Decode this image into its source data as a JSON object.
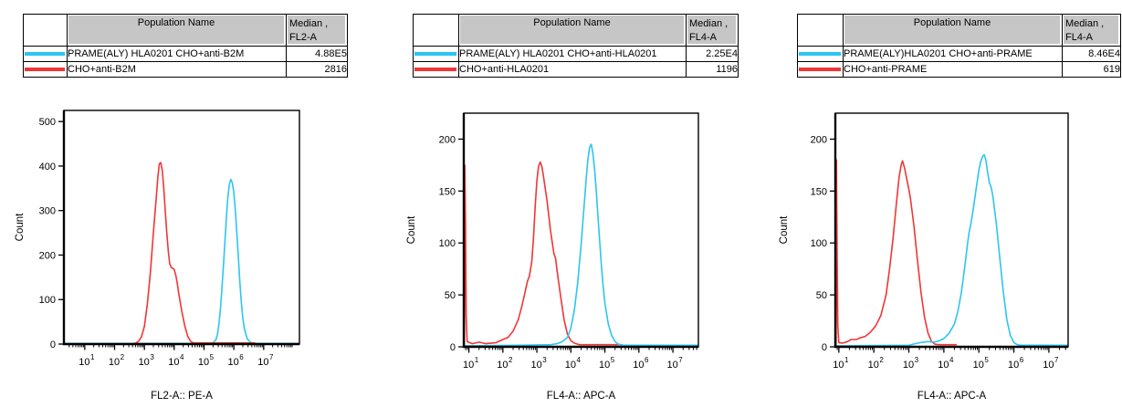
{
  "colors": {
    "cyan": "#2bc5f3",
    "red": "#f13535",
    "table_header_bg": "#c6c6c6",
    "axis": "#000000",
    "background": "#ffffff"
  },
  "panels": [
    {
      "table": {
        "header": {
          "population": "Population Name",
          "median_line1": "Median ,",
          "median_line2": "FL2-A"
        },
        "rows": [
          {
            "swatch_color": "#2bc5f3",
            "name": "PRAME(ALY) HLA0201 CHO+anti-B2M",
            "median": "4.88E5"
          },
          {
            "swatch_color": "#f13535",
            "name": "CHO+anti-B2M",
            "median": "2816"
          }
        ]
      }
    },
    {
      "table": {
        "header": {
          "population": "Population Name",
          "median_line1": "Median ,",
          "median_line2": "FL4-A"
        },
        "rows": [
          {
            "swatch_color": "#2bc5f3",
            "name": "PRAME(ALY) HLA0201 CHO+anti-HLA0201",
            "median": "2.25E4"
          },
          {
            "swatch_color": "#f13535",
            "name": "CHO+anti-HLA0201",
            "median": "1196"
          }
        ]
      }
    },
    {
      "table": {
        "header": {
          "population": "Population Name",
          "median_line1": "Median ,",
          "median_line2": "FL4-A"
        },
        "rows": [
          {
            "swatch_color": "#2bc5f3",
            "name": "PRAME(ALY)HLA0201 CHO+anti-PRAME",
            "median": "8.46E4"
          },
          {
            "swatch_color": "#f13535",
            "name": "CHO+anti-PRAME",
            "median": "619"
          }
        ]
      }
    }
  ],
  "chart_data": [
    {
      "type": "line",
      "title": "",
      "xlabel": "FL2-A:: PE-A",
      "ylabel": "Count",
      "x_scale": "log10",
      "x_range_log": [
        0.3,
        8.2
      ],
      "ylim": [
        0,
        525
      ],
      "yticks": [
        0,
        100,
        200,
        300,
        400,
        500
      ],
      "xticks_exponents": [
        1,
        2,
        3,
        4,
        5,
        6,
        7
      ],
      "grid": false,
      "legend_position": "table-above",
      "series": [
        {
          "name": "PRAME(ALY) HLA0201 CHO+anti-B2M",
          "color": "#2bc5f3",
          "median": "4.88E5",
          "points_logx_count": [
            [
              0.3,
              1.5
            ],
            [
              5.2,
              1.5
            ],
            [
              5.3,
              3
            ],
            [
              5.4,
              10
            ],
            [
              5.45,
              22
            ],
            [
              5.5,
              45
            ],
            [
              5.55,
              80
            ],
            [
              5.6,
              125
            ],
            [
              5.65,
              175
            ],
            [
              5.7,
              230
            ],
            [
              5.75,
              285
            ],
            [
              5.8,
              330
            ],
            [
              5.85,
              360
            ],
            [
              5.9,
              370
            ],
            [
              5.95,
              362
            ],
            [
              6.0,
              340
            ],
            [
              6.05,
              300
            ],
            [
              6.1,
              250
            ],
            [
              6.15,
              195
            ],
            [
              6.2,
              140
            ],
            [
              6.25,
              95
            ],
            [
              6.3,
              60
            ],
            [
              6.35,
              35
            ],
            [
              6.45,
              12
            ],
            [
              6.55,
              4
            ],
            [
              6.65,
              1.5
            ],
            [
              8.2,
              1.5
            ]
          ]
        },
        {
          "name": "CHO+anti-B2M",
          "color": "#f13535",
          "median": "2816",
          "points_logx_count": [
            [
              2.55,
              0
            ],
            [
              2.7,
              2
            ],
            [
              2.8,
              6
            ],
            [
              2.9,
              16
            ],
            [
              3.0,
              40
            ],
            [
              3.1,
              90
            ],
            [
              3.2,
              160
            ],
            [
              3.3,
              250
            ],
            [
              3.4,
              330
            ],
            [
              3.45,
              375
            ],
            [
              3.5,
              405
            ],
            [
              3.55,
              408
            ],
            [
              3.6,
              390
            ],
            [
              3.65,
              350
            ],
            [
              3.7,
              300
            ],
            [
              3.75,
              250
            ],
            [
              3.8,
              210
            ],
            [
              3.85,
              180
            ],
            [
              3.9,
              172
            ],
            [
              4.0,
              168
            ],
            [
              4.05,
              155
            ],
            [
              4.1,
              138
            ],
            [
              4.15,
              115
            ],
            [
              4.25,
              75
            ],
            [
              4.35,
              42
            ],
            [
              4.45,
              18
            ],
            [
              4.55,
              6
            ],
            [
              4.65,
              2.5
            ],
            [
              6.7,
              2.5
            ]
          ]
        }
      ]
    },
    {
      "type": "line",
      "title": "",
      "xlabel": "FL4-A:: APC-A",
      "ylabel": "Count",
      "x_scale": "log10",
      "x_range_log": [
        0.85,
        7.75
      ],
      "ylim": [
        0,
        225
      ],
      "yticks": [
        0,
        50,
        100,
        150,
        200
      ],
      "xticks_exponents": [
        1,
        2,
        3,
        4,
        5,
        6,
        7
      ],
      "grid": false,
      "legend_position": "table-above",
      "series": [
        {
          "name": "CHO+anti-HLA0201",
          "color": "#f13535",
          "median": "1196",
          "points_logx_count": [
            [
              0.87,
              0
            ],
            [
              0.88,
              175
            ],
            [
              0.9,
              120
            ],
            [
              0.92,
              30
            ],
            [
              0.95,
              5
            ],
            [
              1.1,
              3
            ],
            [
              1.3,
              4.5
            ],
            [
              1.5,
              3
            ],
            [
              1.8,
              4
            ],
            [
              2.0,
              7
            ],
            [
              2.15,
              9
            ],
            [
              2.3,
              15
            ],
            [
              2.45,
              26
            ],
            [
              2.55,
              38
            ],
            [
              2.65,
              52
            ],
            [
              2.72,
              63
            ],
            [
              2.78,
              68
            ],
            [
              2.85,
              82
            ],
            [
              2.9,
              105
            ],
            [
              2.95,
              135
            ],
            [
              3.0,
              160
            ],
            [
              3.05,
              174
            ],
            [
              3.1,
              178
            ],
            [
              3.15,
              173
            ],
            [
              3.2,
              163
            ],
            [
              3.3,
              140
            ],
            [
              3.4,
              112
            ],
            [
              3.5,
              90
            ],
            [
              3.55,
              85
            ],
            [
              3.6,
              72
            ],
            [
              3.7,
              48
            ],
            [
              3.8,
              26
            ],
            [
              3.9,
              12
            ],
            [
              4.0,
              6
            ],
            [
              4.1,
              3.5
            ],
            [
              4.25,
              2
            ],
            [
              5.5,
              2
            ]
          ]
        },
        {
          "name": "PRAME(ALY) HLA0201 CHO+anti-HLA0201",
          "color": "#2bc5f3",
          "median": "2.25E4",
          "points_logx_count": [
            [
              0.87,
              1
            ],
            [
              2.5,
              1.5
            ],
            [
              3.4,
              2
            ],
            [
              3.6,
              3
            ],
            [
              3.75,
              5
            ],
            [
              3.9,
              9
            ],
            [
              4.0,
              18
            ],
            [
              4.1,
              35
            ],
            [
              4.2,
              62
            ],
            [
              4.3,
              98
            ],
            [
              4.4,
              140
            ],
            [
              4.45,
              162
            ],
            [
              4.5,
              180
            ],
            [
              4.55,
              192
            ],
            [
              4.6,
              195
            ],
            [
              4.65,
              186
            ],
            [
              4.7,
              170
            ],
            [
              4.75,
              148
            ],
            [
              4.8,
              124
            ],
            [
              4.85,
              100
            ],
            [
              4.9,
              78
            ],
            [
              4.95,
              58
            ],
            [
              5.0,
              42
            ],
            [
              5.1,
              22
            ],
            [
              5.2,
              11
            ],
            [
              5.3,
              5
            ],
            [
              5.4,
              2.5
            ],
            [
              5.5,
              1.5
            ],
            [
              7.75,
              1.5
            ]
          ]
        }
      ]
    },
    {
      "type": "line",
      "title": "",
      "xlabel": "FL4-A:: APC-A",
      "ylabel": "Count",
      "x_scale": "log10",
      "x_range_log": [
        0.9,
        7.55
      ],
      "ylim": [
        0,
        225
      ],
      "yticks": [
        0,
        50,
        100,
        150,
        200
      ],
      "xticks_exponents": [
        1,
        2,
        3,
        4,
        5,
        6,
        7
      ],
      "grid": false,
      "legend_position": "table-above",
      "series": [
        {
          "name": "CHO+anti-PRAME",
          "color": "#f13535",
          "median": "619",
          "points_logx_count": [
            [
              0.92,
              0
            ],
            [
              0.93,
              180
            ],
            [
              0.95,
              95
            ],
            [
              0.97,
              20
            ],
            [
              1.0,
              4
            ],
            [
              1.1,
              3.5
            ],
            [
              1.25,
              5
            ],
            [
              1.35,
              7
            ],
            [
              1.5,
              7
            ],
            [
              1.6,
              8.5
            ],
            [
              1.75,
              10
            ],
            [
              1.9,
              14
            ],
            [
              2.05,
              20
            ],
            [
              2.2,
              30
            ],
            [
              2.35,
              50
            ],
            [
              2.45,
              75
            ],
            [
              2.55,
              105
            ],
            [
              2.65,
              140
            ],
            [
              2.72,
              163
            ],
            [
              2.78,
              175
            ],
            [
              2.82,
              179
            ],
            [
              2.88,
              172
            ],
            [
              2.95,
              160
            ],
            [
              3.0,
              152
            ],
            [
              3.05,
              142
            ],
            [
              3.15,
              115
            ],
            [
              3.25,
              82
            ],
            [
              3.35,
              52
            ],
            [
              3.45,
              28
            ],
            [
              3.55,
              13
            ],
            [
              3.65,
              5
            ],
            [
              3.75,
              2.5
            ],
            [
              3.85,
              2
            ],
            [
              4.35,
              2
            ]
          ]
        },
        {
          "name": "PRAME(ALY)HLA0201 CHO+anti-PRAME",
          "color": "#2bc5f3",
          "median": "8.46E4",
          "points_logx_count": [
            [
              0.92,
              1
            ],
            [
              3.0,
              1.5
            ],
            [
              3.25,
              3.5
            ],
            [
              3.4,
              4.5
            ],
            [
              3.55,
              5
            ],
            [
              3.7,
              4.5
            ],
            [
              3.85,
              5.5
            ],
            [
              4.0,
              8
            ],
            [
              4.15,
              13
            ],
            [
              4.3,
              22
            ],
            [
              4.4,
              34
            ],
            [
              4.5,
              52
            ],
            [
              4.6,
              78
            ],
            [
              4.68,
              100
            ],
            [
              4.72,
              110
            ],
            [
              4.78,
              120
            ],
            [
              4.85,
              135
            ],
            [
              4.92,
              152
            ],
            [
              5.0,
              170
            ],
            [
              5.05,
              178
            ],
            [
              5.1,
              183
            ],
            [
              5.15,
              185
            ],
            [
              5.2,
              180
            ],
            [
              5.25,
              168
            ],
            [
              5.3,
              158
            ],
            [
              5.35,
              154
            ],
            [
              5.4,
              145
            ],
            [
              5.5,
              118
            ],
            [
              5.6,
              85
            ],
            [
              5.7,
              52
            ],
            [
              5.8,
              26
            ],
            [
              5.9,
              11
            ],
            [
              6.0,
              4
            ],
            [
              6.1,
              2
            ],
            [
              6.2,
              1.5
            ],
            [
              7.55,
              1.5
            ]
          ]
        }
      ]
    }
  ]
}
